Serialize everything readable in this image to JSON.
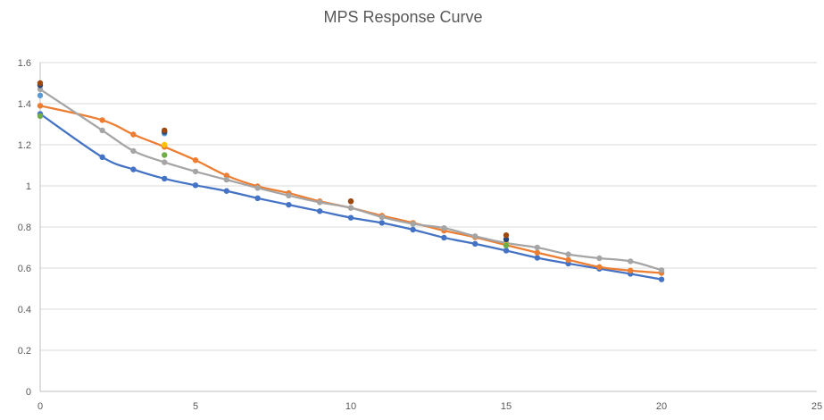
{
  "chart_data": {
    "type": "scatter",
    "title": "MPS Response Curve",
    "xlabel": "",
    "ylabel": "",
    "xlim": [
      0,
      25
    ],
    "ylim": [
      0,
      1.6
    ],
    "x_ticks": [
      "0",
      "5",
      "10",
      "15",
      "20",
      "25"
    ],
    "y_ticks": [
      "0",
      "0.2",
      "0.4",
      "0.6",
      "0.8",
      "1",
      "1.2",
      "1.4",
      "1.6"
    ],
    "grid": "horizontal",
    "legend": "none",
    "series": [
      {
        "color": "#4472C4",
        "smooth_line": true,
        "points": [
          [
            0,
            1.35
          ],
          [
            2,
            1.14
          ],
          [
            3,
            1.08
          ],
          [
            4,
            1.035
          ],
          [
            5,
            1.003
          ],
          [
            6,
            0.975
          ],
          [
            7,
            0.94
          ],
          [
            8,
            0.908
          ],
          [
            9,
            0.877
          ],
          [
            10,
            0.845
          ],
          [
            11,
            0.82
          ],
          [
            12,
            0.787
          ],
          [
            13,
            0.748
          ],
          [
            14,
            0.718
          ],
          [
            15,
            0.685
          ],
          [
            16,
            0.65
          ],
          [
            17,
            0.622
          ],
          [
            18,
            0.597
          ],
          [
            19,
            0.572
          ],
          [
            20,
            0.545
          ]
        ]
      },
      {
        "color": "#ED7D31",
        "smooth_line": true,
        "points": [
          [
            0,
            1.39
          ],
          [
            2,
            1.32
          ],
          [
            3,
            1.25
          ],
          [
            4,
            1.19
          ],
          [
            5,
            1.125
          ],
          [
            6,
            1.05
          ],
          [
            7,
            0.998
          ],
          [
            8,
            0.965
          ],
          [
            9,
            0.925
          ],
          [
            10,
            0.893
          ],
          [
            11,
            0.855
          ],
          [
            12,
            0.82
          ],
          [
            13,
            0.782
          ],
          [
            14,
            0.75
          ],
          [
            15,
            0.712
          ],
          [
            16,
            0.675
          ],
          [
            17,
            0.64
          ],
          [
            18,
            0.605
          ],
          [
            19,
            0.588
          ],
          [
            20,
            0.576
          ]
        ]
      },
      {
        "color": "#A5A5A5",
        "smooth_line": true,
        "points": [
          [
            0,
            1.47
          ],
          [
            2,
            1.27
          ],
          [
            3,
            1.17
          ],
          [
            4,
            1.115
          ],
          [
            5,
            1.07
          ],
          [
            6,
            1.03
          ],
          [
            7,
            0.99
          ],
          [
            8,
            0.953
          ],
          [
            9,
            0.92
          ],
          [
            10,
            0.893
          ],
          [
            11,
            0.848
          ],
          [
            12,
            0.815
          ],
          [
            13,
            0.795
          ],
          [
            14,
            0.755
          ],
          [
            15,
            0.722
          ],
          [
            16,
            0.7
          ],
          [
            17,
            0.667
          ],
          [
            18,
            0.648
          ],
          [
            19,
            0.633
          ],
          [
            20,
            0.59
          ]
        ]
      },
      {
        "color": "#FFC000",
        "smooth_line": false,
        "points": [
          [
            4,
            1.2
          ],
          [
            15,
            0.713
          ]
        ]
      },
      {
        "color": "#5B9BD5",
        "smooth_line": false,
        "points": [
          [
            0,
            1.44
          ],
          [
            4,
            1.255
          ]
        ]
      },
      {
        "color": "#70AD47",
        "smooth_line": false,
        "points": [
          [
            0,
            1.34
          ],
          [
            4,
            1.15
          ],
          [
            15,
            0.71
          ]
        ]
      },
      {
        "color": "#264478",
        "smooth_line": false,
        "points": [
          [
            0,
            1.49
          ],
          [
            4,
            1.263
          ],
          [
            10,
            0.925
          ],
          [
            15,
            0.74
          ]
        ]
      },
      {
        "color": "#9E480E",
        "smooth_line": false,
        "points": [
          [
            0,
            1.5
          ],
          [
            4,
            1.27
          ],
          [
            10,
            0.925
          ],
          [
            15,
            0.76
          ]
        ]
      }
    ]
  }
}
